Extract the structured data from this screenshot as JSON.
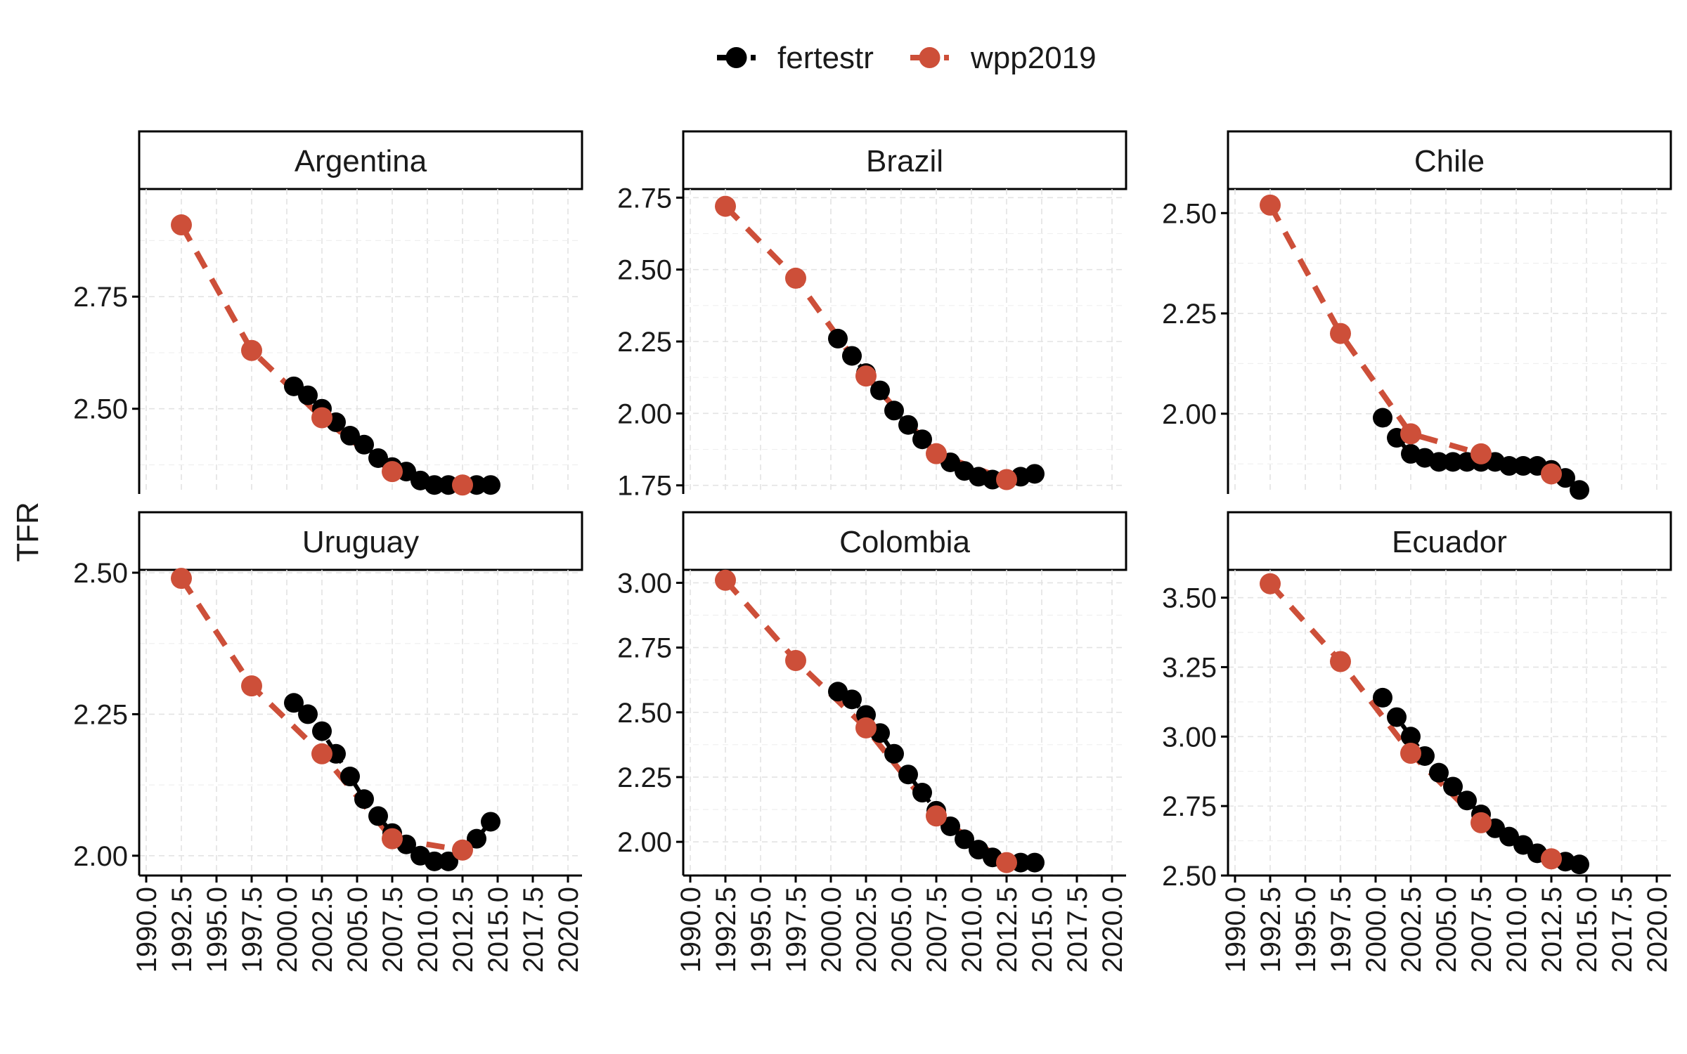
{
  "chart_data": {
    "type": "line",
    "ylabel": "TFR",
    "xlabel": "",
    "legend": {
      "placement": "top",
      "entries": [
        {
          "name": "fertestr",
          "color": "#000000",
          "linestyle": "dashed",
          "marker": "circle"
        },
        {
          "name": "wpp2019",
          "color": "#CD4F39",
          "linestyle": "dashed",
          "marker": "circle"
        }
      ]
    },
    "grid": true,
    "x_ticks": [
      "1990.0",
      "1992.5",
      "1995.0",
      "1997.5",
      "2000.0",
      "2002.5",
      "2005.0",
      "2007.5",
      "2010.0",
      "2012.5",
      "2015.0",
      "2017.5",
      "2020.0"
    ],
    "xlim": [
      1989.5,
      2021.0
    ],
    "panels": [
      {
        "title": "Argentina",
        "ylim": [
          2.31,
          2.99
        ],
        "y_ticks": [
          2.5,
          2.75
        ],
        "y_tick_labels": [
          "2.50",
          "2.75"
        ],
        "show_x_ticks": false,
        "series": {
          "fertestr": {
            "x": [
              2000.5,
              2001.5,
              2002.5,
              2003.5,
              2004.5,
              2005.5,
              2006.5,
              2007.5,
              2008.5,
              2009.5,
              2010.5,
              2011.5,
              2012.5,
              2013.5,
              2014.5
            ],
            "y": [
              2.55,
              2.53,
              2.5,
              2.47,
              2.44,
              2.42,
              2.39,
              2.37,
              2.36,
              2.34,
              2.33,
              2.33,
              2.33,
              2.33,
              2.33
            ]
          },
          "wpp2019": {
            "x": [
              1992.5,
              1997.5,
              2002.5,
              2007.5,
              2012.5
            ],
            "y": [
              2.91,
              2.63,
              2.48,
              2.36,
              2.33
            ]
          }
        }
      },
      {
        "title": "Brazil",
        "ylim": [
          1.72,
          2.78
        ],
        "y_ticks": [
          1.75,
          2.0,
          2.25,
          2.5,
          2.75
        ],
        "y_tick_labels": [
          "1.75",
          "2.00",
          "2.25",
          "2.50",
          "2.75"
        ],
        "show_x_ticks": false,
        "series": {
          "fertestr": {
            "x": [
              2000.5,
              2001.5,
              2002.5,
              2003.5,
              2004.5,
              2005.5,
              2006.5,
              2007.5,
              2008.5,
              2009.5,
              2010.5,
              2011.5,
              2012.5,
              2013.5,
              2014.5
            ],
            "y": [
              2.26,
              2.2,
              2.14,
              2.08,
              2.01,
              1.96,
              1.91,
              1.86,
              1.83,
              1.8,
              1.78,
              1.77,
              1.77,
              1.78,
              1.79
            ]
          },
          "wpp2019": {
            "x": [
              1992.5,
              1997.5,
              2002.5,
              2007.5,
              2012.5
            ],
            "y": [
              2.72,
              2.47,
              2.13,
              1.86,
              1.77
            ]
          }
        }
      },
      {
        "title": "Chile",
        "ylim": [
          1.8,
          2.56
        ],
        "y_ticks": [
          2.0,
          2.25,
          2.5
        ],
        "y_tick_labels": [
          "2.00",
          "2.25",
          "2.50"
        ],
        "show_x_ticks": false,
        "series": {
          "fertestr": {
            "x": [
              2000.5,
              2001.5,
              2002.5,
              2003.5,
              2004.5,
              2005.5,
              2006.5,
              2007.5,
              2008.5,
              2009.5,
              2010.5,
              2011.5,
              2012.5,
              2013.5,
              2014.5
            ],
            "y": [
              1.99,
              1.94,
              1.9,
              1.89,
              1.88,
              1.88,
              1.88,
              1.88,
              1.88,
              1.87,
              1.87,
              1.87,
              1.86,
              1.84,
              1.81
            ]
          },
          "wpp2019": {
            "x": [
              1992.5,
              1997.5,
              2002.5,
              2007.5,
              2012.5
            ],
            "y": [
              2.52,
              2.2,
              1.95,
              1.9,
              1.85
            ]
          }
        }
      },
      {
        "title": "Uruguay",
        "ylim": [
          1.965,
          2.505
        ],
        "y_ticks": [
          2.0,
          2.25,
          2.5
        ],
        "y_tick_labels": [
          "2.00",
          "2.25",
          "2.50"
        ],
        "show_x_ticks": true,
        "series": {
          "fertestr": {
            "x": [
              2000.5,
              2001.5,
              2002.5,
              2003.5,
              2004.5,
              2005.5,
              2006.5,
              2007.5,
              2008.5,
              2009.5,
              2010.5,
              2011.5,
              2012.5,
              2013.5,
              2014.5
            ],
            "y": [
              2.27,
              2.25,
              2.22,
              2.18,
              2.14,
              2.1,
              2.07,
              2.04,
              2.02,
              2.0,
              1.99,
              1.99,
              2.01,
              2.03,
              2.06
            ]
          },
          "wpp2019": {
            "x": [
              1992.5,
              1997.5,
              2002.5,
              2007.5,
              2012.5
            ],
            "y": [
              2.49,
              2.3,
              2.18,
              2.03,
              2.01
            ]
          }
        }
      },
      {
        "title": "Colombia",
        "ylim": [
          1.87,
          3.05
        ],
        "y_ticks": [
          2.0,
          2.25,
          2.5,
          2.75,
          3.0
        ],
        "y_tick_labels": [
          "2.00",
          "2.25",
          "2.50",
          "2.75",
          "3.00"
        ],
        "show_x_ticks": true,
        "series": {
          "fertestr": {
            "x": [
              2000.5,
              2001.5,
              2002.5,
              2003.5,
              2004.5,
              2005.5,
              2006.5,
              2007.5,
              2008.5,
              2009.5,
              2010.5,
              2011.5,
              2012.5,
              2013.5,
              2014.5
            ],
            "y": [
              2.58,
              2.55,
              2.49,
              2.42,
              2.34,
              2.26,
              2.19,
              2.12,
              2.06,
              2.01,
              1.97,
              1.94,
              1.92,
              1.92,
              1.92
            ]
          },
          "wpp2019": {
            "x": [
              1992.5,
              1997.5,
              2002.5,
              2007.5,
              2012.5
            ],
            "y": [
              3.01,
              2.7,
              2.44,
              2.1,
              1.92
            ]
          }
        }
      },
      {
        "title": "Ecuador",
        "ylim": [
          2.5,
          3.6
        ],
        "y_ticks": [
          2.5,
          2.75,
          3.0,
          3.25,
          3.5
        ],
        "y_tick_labels": [
          "2.50",
          "2.75",
          "3.00",
          "3.25",
          "3.50"
        ],
        "show_x_ticks": true,
        "series": {
          "fertestr": {
            "x": [
              2000.5,
              2001.5,
              2002.5,
              2003.5,
              2004.5,
              2005.5,
              2006.5,
              2007.5,
              2008.5,
              2009.5,
              2010.5,
              2011.5,
              2012.5,
              2013.5,
              2014.5
            ],
            "y": [
              3.14,
              3.07,
              3.0,
              2.93,
              2.87,
              2.82,
              2.77,
              2.72,
              2.67,
              2.64,
              2.61,
              2.58,
              2.56,
              2.55,
              2.54
            ]
          },
          "wpp2019": {
            "x": [
              1992.5,
              1997.5,
              2002.5,
              2007.5,
              2012.5
            ],
            "y": [
              3.55,
              3.27,
              2.94,
              2.69,
              2.56
            ]
          }
        }
      }
    ]
  }
}
